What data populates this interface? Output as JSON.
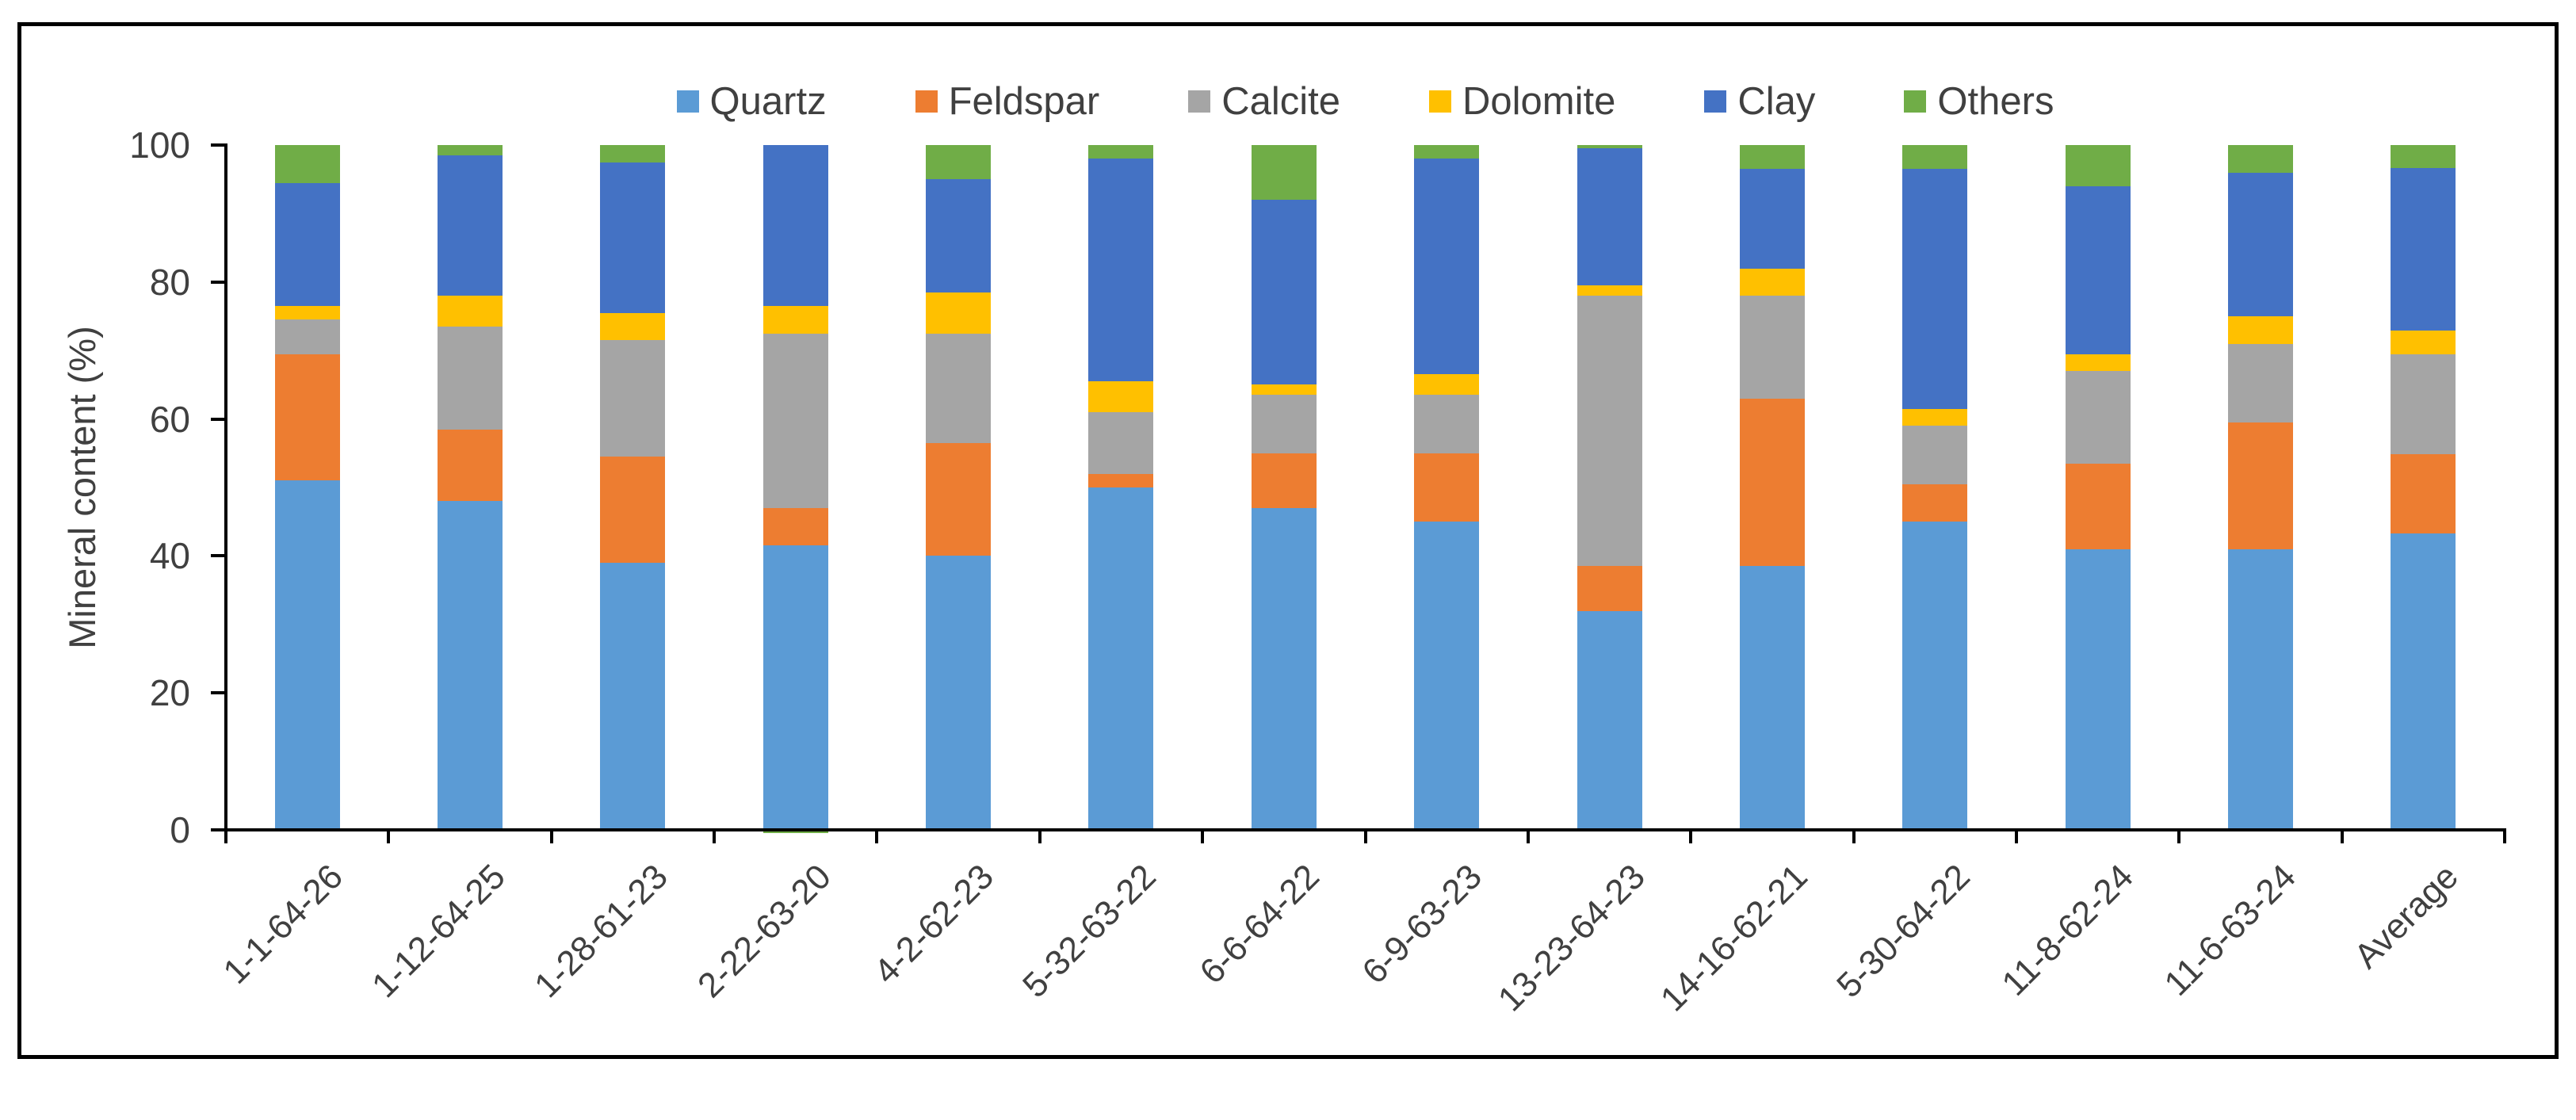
{
  "chart_data": {
    "type": "bar",
    "stacked": true,
    "title": "",
    "xlabel": "",
    "ylabel": "Mineral content (%)",
    "ylim": [
      0,
      100
    ],
    "yticks": [
      0,
      20,
      40,
      60,
      80,
      100
    ],
    "grid": false,
    "legend_position": "top",
    "text_color": "#404040",
    "axis_color": "#000000",
    "categories": [
      "1-1-64-26",
      "1-12-64-25",
      "1-28-61-23",
      "2-22-63-20",
      "4-2-62-23",
      "5-32-63-22",
      "6-6-64-22",
      "6-9-63-23",
      "13-23-64-23",
      "14-16-62-21",
      "5-30-64-22",
      "11-8-62-24",
      "11-6-63-24",
      "Average"
    ],
    "series": [
      {
        "name": "Quartz",
        "color": "#5B9BD5",
        "values": [
          51,
          48,
          39,
          41.5,
          40,
          50,
          47,
          45,
          32,
          38.5,
          45,
          41,
          41,
          43.3
        ]
      },
      {
        "name": "Feldspar",
        "color": "#ED7D31",
        "values": [
          18.5,
          10.5,
          15.5,
          5.5,
          16.5,
          2,
          8,
          10,
          6.5,
          24.5,
          5.5,
          12.5,
          18.5,
          11.6
        ]
      },
      {
        "name": "Calcite",
        "color": "#A5A5A5",
        "values": [
          5,
          15,
          17,
          25.5,
          16,
          9,
          8.5,
          8.5,
          39.5,
          15,
          8.5,
          13.5,
          11.5,
          14.6
        ]
      },
      {
        "name": "Dolomite",
        "color": "#FFC000",
        "values": [
          2,
          4.5,
          4,
          4,
          6,
          4.5,
          1.5,
          3,
          1.5,
          4,
          2.5,
          2.5,
          4,
          3.4
        ]
      },
      {
        "name": "Clay",
        "color": "#4472C4",
        "values": [
          18,
          20.5,
          22,
          23.5,
          16.5,
          32.5,
          27,
          31.5,
          20,
          14.5,
          35,
          24.5,
          21,
          23.7
        ]
      },
      {
        "name": "Others",
        "color": "#70AD47",
        "values": [
          5.5,
          1.5,
          2.5,
          -0.5,
          5,
          2,
          8,
          2,
          0.5,
          3.5,
          3.5,
          6,
          4,
          3.4
        ]
      }
    ]
  }
}
